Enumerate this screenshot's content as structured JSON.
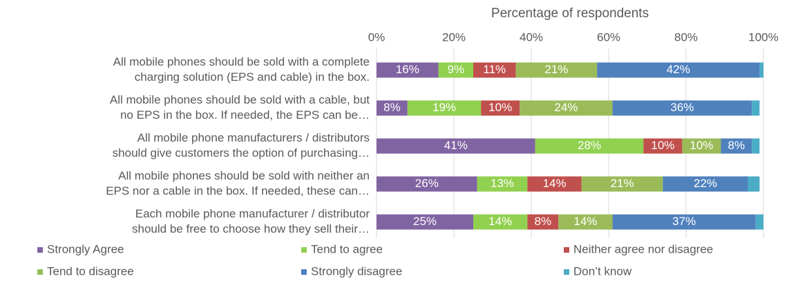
{
  "chart_data": {
    "type": "stacked_bar_horizontal",
    "xlabel": "Percentage of respondents",
    "categories": [
      [
        "All mobile phones should be sold with a complete",
        "charging solution (EPS and cable) in the box."
      ],
      [
        "All mobile phones should be sold with a cable, but",
        "no EPS in the box. If needed, the EPS can be…"
      ],
      [
        "All mobile phone manufacturers / distributors",
        "should give customers the option of purchasing…"
      ],
      [
        "All mobile phones should be sold with neither an",
        "EPS nor a cable in the box. If needed, these can…"
      ],
      [
        "Each mobile phone manufacturer / distributor",
        "should be free to choose how they sell their…"
      ]
    ],
    "series": [
      {
        "name": "Strongly Agree",
        "color": "#8064a2",
        "values": [
          16,
          8,
          41,
          26,
          25
        ],
        "value_labels": [
          "16%",
          "8%",
          "41%",
          "26%",
          "25%"
        ]
      },
      {
        "name": "Tend to agree",
        "color": "#92d050",
        "values": [
          9,
          19,
          28,
          13,
          14
        ],
        "value_labels": [
          "9%",
          "19%",
          "28%",
          "13%",
          "14%"
        ]
      },
      {
        "name": "Neither agree nor disagree",
        "color": "#c0504d",
        "values": [
          11,
          10,
          10,
          14,
          8
        ],
        "value_labels": [
          "11%",
          "10%",
          "10%",
          "14%",
          "8%"
        ]
      },
      {
        "name": "Tend to disagree",
        "color": "#9bbb59",
        "values": [
          21,
          24,
          10,
          21,
          14
        ],
        "value_labels": [
          "21%",
          "24%",
          "10%",
          "21%",
          "14%"
        ]
      },
      {
        "name": "Strongly disagree",
        "color": "#4f81bd",
        "values": [
          42,
          36,
          8,
          22,
          37
        ],
        "value_labels": [
          "42%",
          "36%",
          "8%",
          "22%",
          "37%"
        ]
      },
      {
        "name": "Don’t know",
        "color": "#4bacc6",
        "values": [
          1,
          2,
          2,
          3,
          2
        ]
      }
    ],
    "xlim": [
      0,
      100
    ],
    "xticks": [
      {
        "value": 0,
        "label": "0%"
      },
      {
        "value": 20,
        "label": "20%"
      },
      {
        "value": 40,
        "label": "40%"
      },
      {
        "value": 60,
        "label": "60%"
      },
      {
        "value": 80,
        "label": "80%"
      },
      {
        "value": 100,
        "label": "100%"
      }
    ],
    "grid": true,
    "legend": "bottom"
  }
}
